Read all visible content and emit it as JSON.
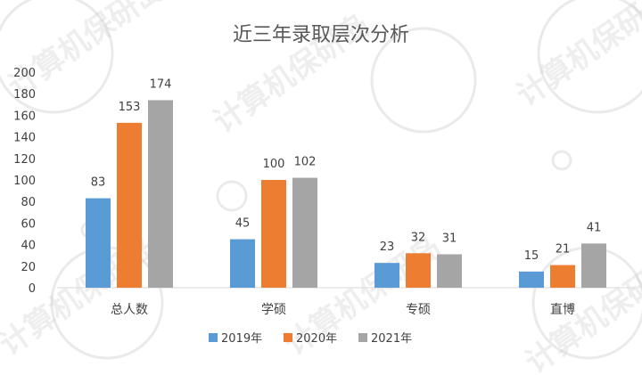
{
  "watermark": {
    "text": "计算机保研岛"
  },
  "chart_data": {
    "type": "bar",
    "title": "近三年录取层次分析",
    "categories": [
      "总人数",
      "学硕",
      "专硕",
      "直博"
    ],
    "series": [
      {
        "name": "2019年",
        "color": "#5b9bd5",
        "values": [
          83,
          45,
          23,
          15
        ]
      },
      {
        "name": "2020年",
        "color": "#ed7d31",
        "values": [
          153,
          100,
          32,
          21
        ]
      },
      {
        "name": "2021年",
        "color": "#a5a5a5",
        "values": [
          174,
          102,
          31,
          41
        ]
      }
    ],
    "yticks": [
      0,
      20,
      40,
      60,
      80,
      100,
      120,
      140,
      160,
      180,
      200
    ],
    "ylim": [
      0,
      200
    ],
    "xlabel": "",
    "ylabel": "",
    "grid": false,
    "legend_position": "bottom-center"
  }
}
